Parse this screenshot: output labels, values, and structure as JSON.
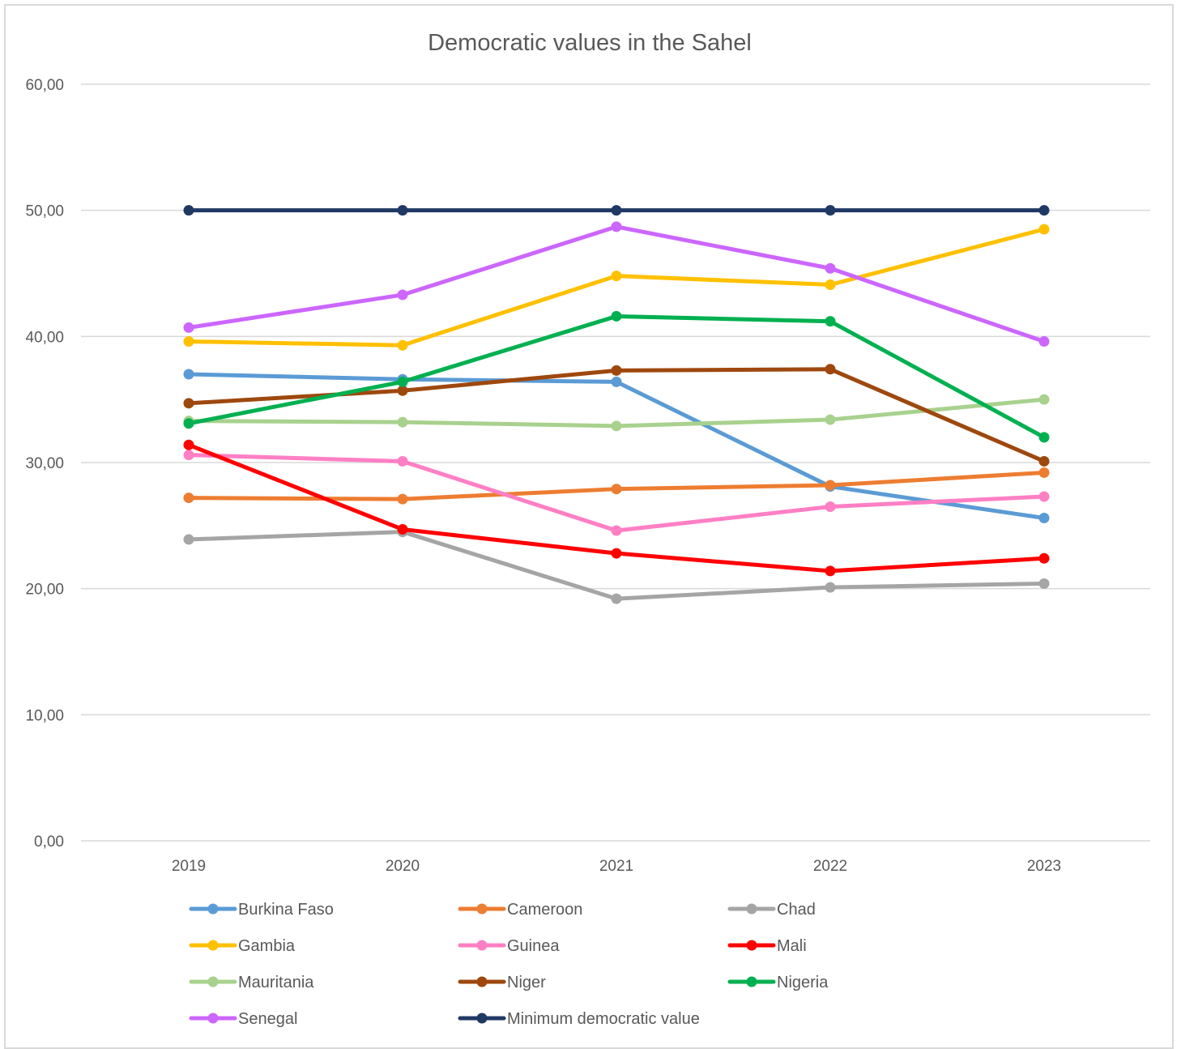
{
  "chart_data": {
    "type": "line",
    "title": "Democratic values in the Sahel",
    "xlabel": "",
    "ylabel": "",
    "categories": [
      "2019",
      "2020",
      "2021",
      "2022",
      "2023"
    ],
    "ylim": [
      0,
      60
    ],
    "yticks": [
      0,
      10,
      20,
      30,
      40,
      50,
      60
    ],
    "ytick_labels": [
      "0,00",
      "10,00",
      "20,00",
      "30,00",
      "40,00",
      "50,00",
      "60,00"
    ],
    "grid": true,
    "legend_position": "bottom",
    "series": [
      {
        "name": "Burkina Faso",
        "color": "#5b9bd5",
        "values": [
          37.0,
          36.6,
          36.4,
          28.1,
          25.6
        ]
      },
      {
        "name": "Cameroon",
        "color": "#ed7d31",
        "values": [
          27.2,
          27.1,
          27.9,
          28.2,
          29.2
        ]
      },
      {
        "name": "Chad",
        "color": "#a5a5a5",
        "values": [
          23.9,
          24.5,
          19.2,
          20.1,
          20.4
        ]
      },
      {
        "name": "Gambia",
        "color": "#ffc000",
        "values": [
          39.6,
          39.3,
          44.8,
          44.1,
          48.5
        ]
      },
      {
        "name": "Guinea",
        "color": "#ff7fc4",
        "values": [
          30.6,
          30.1,
          24.6,
          26.5,
          27.3
        ]
      },
      {
        "name": "Mali",
        "color": "#ff0000",
        "values": [
          31.4,
          24.7,
          22.8,
          21.4,
          22.4
        ]
      },
      {
        "name": "Mauritania",
        "color": "#a9d18e",
        "values": [
          33.3,
          33.2,
          32.9,
          33.4,
          35.0
        ]
      },
      {
        "name": "Niger",
        "color": "#9e480e",
        "values": [
          34.7,
          35.7,
          37.3,
          37.4,
          30.1
        ]
      },
      {
        "name": "Nigeria",
        "color": "#00b050",
        "values": [
          33.1,
          36.4,
          41.6,
          41.2,
          32.0
        ]
      },
      {
        "name": "Senegal",
        "color": "#cc66ff",
        "values": [
          40.7,
          43.3,
          48.7,
          45.4,
          39.6
        ]
      },
      {
        "name": "Minimum democratic value",
        "color": "#203864",
        "values": [
          50.0,
          50.0,
          50.0,
          50.0,
          50.0
        ]
      }
    ]
  }
}
